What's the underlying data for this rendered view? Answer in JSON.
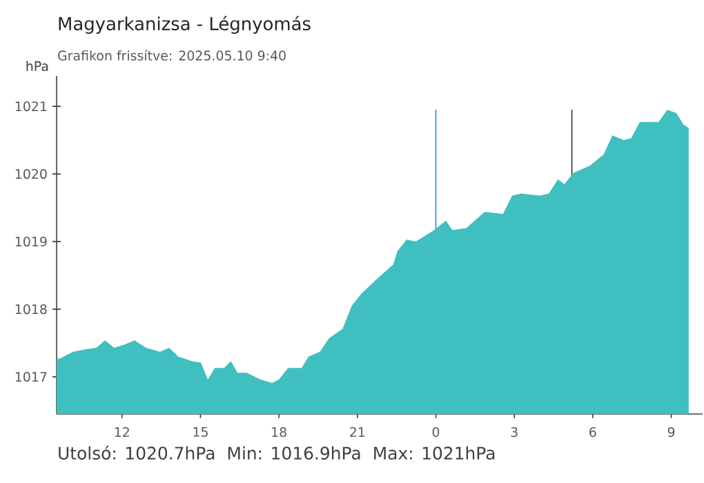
{
  "chart_data": {
    "type": "area",
    "title": "Magyarkanizsa - Légnyomás",
    "subtitle": "Grafikon frissítve: 2025.05.10 9:40",
    "ylabel": "hPa",
    "x": [
      "2025-05-09T09:30",
      "2025-05-09T09:37",
      "2025-05-09T10:08",
      "2025-05-09T10:39",
      "2025-05-09T11:01",
      "2025-05-09T11:21",
      "2025-05-09T11:42",
      "2025-05-09T12:03",
      "2025-05-09T12:29",
      "2025-05-09T12:55",
      "2025-05-09T13:27",
      "2025-05-09T13:48",
      "2025-05-09T14:09",
      "2025-05-09T14:41",
      "2025-05-09T15:01",
      "2025-05-09T15:17",
      "2025-05-09T15:33",
      "2025-05-09T15:54",
      "2025-05-09T16:10",
      "2025-05-09T16:25",
      "2025-05-09T16:46",
      "2025-05-09T17:18",
      "2025-05-09T17:44",
      "2025-05-09T18:00",
      "2025-05-09T18:21",
      "2025-05-09T18:52",
      "2025-05-09T19:08",
      "2025-05-09T19:34",
      "2025-05-09T19:55",
      "2025-05-09T20:26",
      "2025-05-09T20:47",
      "2025-05-09T21:08",
      "2025-05-09T21:40",
      "2025-05-09T22:22",
      "2025-05-09T22:32",
      "2025-05-09T22:53",
      "2025-05-09T23:14",
      "2025-05-09T23:56",
      "2025-05-10T00:23",
      "2025-05-10T00:38",
      "2025-05-10T01:10",
      "2025-05-10T01:52",
      "2025-05-10T02:34",
      "2025-05-10T02:55",
      "2025-05-10T03:16",
      "2025-05-10T03:58",
      "2025-05-10T04:19",
      "2025-05-10T04:40",
      "2025-05-10T04:55",
      "2025-05-10T05:16",
      "2025-05-10T05:53",
      "2025-05-10T06:25",
      "2025-05-10T06:45",
      "2025-05-10T07:11",
      "2025-05-10T07:28",
      "2025-05-10T07:48",
      "2025-05-10T08:31",
      "2025-05-10T08:51",
      "2025-05-10T09:12",
      "2025-05-10T09:28",
      "2025-05-10T09:40"
    ],
    "series": [
      {
        "color": "#40bfc1",
        "values": [
          1017.27,
          1017.27,
          1017.37,
          1017.41,
          1017.43,
          1017.54,
          1017.43,
          1017.47,
          1017.54,
          1017.43,
          1017.37,
          1017.43,
          1017.3,
          1017.23,
          1017.21,
          1016.96,
          1017.13,
          1017.13,
          1017.23,
          1017.06,
          1017.06,
          1016.96,
          1016.91,
          1016.96,
          1017.13,
          1017.13,
          1017.3,
          1017.37,
          1017.57,
          1017.71,
          1018.05,
          1018.22,
          1018.42,
          1018.66,
          1018.86,
          1019.03,
          1019.0,
          1019.17,
          1019.31,
          1019.17,
          1019.2,
          1019.44,
          1019.41,
          1019.68,
          1019.71,
          1019.68,
          1019.71,
          1019.92,
          1019.85,
          1020.02,
          1020.12,
          1020.29,
          1020.57,
          1020.5,
          1020.53,
          1020.77,
          1020.77,
          1020.95,
          1020.9,
          1020.73,
          1020.68
        ]
      }
    ],
    "xlim": [
      "2025-05-09T09:30",
      "2025-05-10T10:12"
    ],
    "ylim": [
      1016.45,
      1021.45
    ],
    "xticks": [
      {
        "value": "2025-05-09T12:00",
        "label": "12"
      },
      {
        "value": "2025-05-09T15:00",
        "label": "15"
      },
      {
        "value": "2025-05-09T18:00",
        "label": "18"
      },
      {
        "value": "2025-05-09T21:00",
        "label": "21"
      },
      {
        "value": "2025-05-10T00:00",
        "label": "0"
      },
      {
        "value": "2025-05-10T03:00",
        "label": "3"
      },
      {
        "value": "2025-05-10T06:00",
        "label": "6"
      },
      {
        "value": "2025-05-10T09:00",
        "label": "9"
      }
    ],
    "yticks": [
      1017,
      1018,
      1019,
      1020,
      1021
    ],
    "ref_lines": [
      {
        "axis": "x",
        "value": "2025-05-10T00:00",
        "color": "#1e88e5"
      },
      {
        "axis": "x",
        "value": "2025-05-10T05:12",
        "color": "#333333"
      }
    ],
    "grid": false,
    "annotations": [
      "Utolsó: 1020.7hPa",
      "Min: 1016.9hPa",
      "Max: 1021hPa"
    ]
  }
}
